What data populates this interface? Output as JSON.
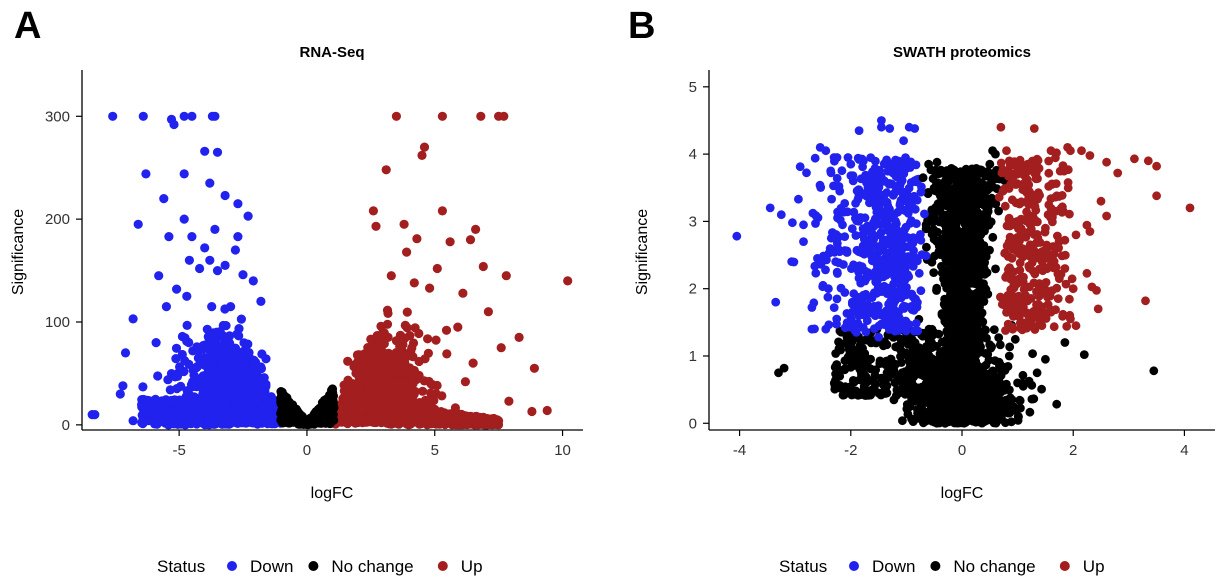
{
  "panels": [
    {
      "letter": "A",
      "chart_data": {
        "type": "scatter",
        "title": "RNA-Seq",
        "xlabel": "logFC",
        "ylabel": "Significance",
        "xlim": [
          -8.8,
          10.8
        ],
        "ylim": [
          -5,
          345
        ],
        "xticks": [
          -5,
          0,
          5,
          10
        ],
        "yticks": [
          0,
          100,
          200,
          300
        ],
        "grid": false,
        "series": [
          {
            "name": "Down",
            "color": "#2222ee",
            "points": [
              [
                -7.6,
                300
              ],
              [
                -6.4,
                300
              ],
              [
                -5.3,
                297
              ],
              [
                -5.2,
                292
              ],
              [
                -4.8,
                300
              ],
              [
                -4.5,
                300
              ],
              [
                -3.7,
                300
              ],
              [
                -3.6,
                300
              ],
              [
                -4.0,
                266
              ],
              [
                -3.5,
                265
              ],
              [
                -4.8,
                244
              ],
              [
                -6.3,
                244
              ],
              [
                -3.8,
                235
              ],
              [
                -5.6,
                220
              ],
              [
                -4.8,
                200
              ],
              [
                -3.2,
                223
              ],
              [
                -2.7,
                215
              ],
              [
                -2.3,
                203
              ],
              [
                -6.6,
                195
              ],
              [
                -5.4,
                183
              ],
              [
                -4.5,
                183
              ],
              [
                -2.7,
                183
              ],
              [
                -3.6,
                190
              ],
              [
                -4.0,
                172
              ],
              [
                -2.8,
                170
              ],
              [
                -5.8,
                145
              ],
              [
                -4.6,
                160
              ],
              [
                -4.2,
                152
              ],
              [
                -3.8,
                160
              ],
              [
                -3.5,
                150
              ],
              [
                -3.2,
                155
              ],
              [
                -2.5,
                146
              ],
              [
                -2.1,
                140
              ],
              [
                -5.1,
                132
              ],
              [
                -4.7,
                125
              ],
              [
                -1.8,
                120
              ],
              [
                -6.8,
                103
              ],
              [
                -5.5,
                115
              ],
              [
                -5.9,
                80
              ],
              [
                -7.1,
                70
              ],
              [
                -7.2,
                38
              ],
              [
                -7.3,
                30
              ],
              [
                -8.4,
                10
              ],
              [
                -8.3,
                10
              ],
              [
                -6.0,
                4
              ],
              [
                -6.4,
                4
              ],
              [
                -5.7,
                4
              ],
              [
                -6.8,
                4
              ]
            ]
          },
          {
            "name": "No change",
            "color": "#000000",
            "points": []
          },
          {
            "name": "Up",
            "color": "#a31e1e",
            "points": [
              [
                3.5,
                300
              ],
              [
                5.3,
                300
              ],
              [
                6.8,
                300
              ],
              [
                7.5,
                300
              ],
              [
                7.7,
                300
              ],
              [
                4.6,
                270
              ],
              [
                4.5,
                262
              ],
              [
                3.1,
                248
              ],
              [
                2.6,
                208
              ],
              [
                5.3,
                208
              ],
              [
                2.7,
                193
              ],
              [
                3.8,
                195
              ],
              [
                6.6,
                190
              ],
              [
                4.3,
                181
              ],
              [
                6.4,
                180
              ],
              [
                5.6,
                178
              ],
              [
                3.9,
                168
              ],
              [
                7.8,
                145
              ],
              [
                10.2,
                140
              ],
              [
                6.9,
                154
              ],
              [
                8.3,
                85
              ],
              [
                8.9,
                55
              ],
              [
                5.1,
                152
              ],
              [
                4.8,
                133
              ],
              [
                4.2,
                138
              ],
              [
                3.3,
                145
              ],
              [
                6.1,
                128
              ],
              [
                7.1,
                110
              ],
              [
                7.6,
                75
              ],
              [
                7.9,
                23
              ],
              [
                8.8,
                13
              ],
              [
                9.4,
                14
              ],
              [
                5.9,
                95
              ],
              [
                6.5,
                60
              ],
              [
                6.2,
                42
              ]
            ]
          }
        ]
      }
    },
    {
      "letter": "B",
      "chart_data": {
        "type": "scatter",
        "title": "SWATH proteomics",
        "xlabel": "logFC",
        "ylabel": "Significance",
        "xlim": [
          -4.55,
          4.55
        ],
        "ylim": [
          -0.1,
          5.25
        ],
        "xticks": [
          -4,
          -2,
          0,
          2,
          4
        ],
        "yticks": [
          0,
          1,
          2,
          3,
          4,
          5
        ],
        "grid": false,
        "series": [
          {
            "name": "Down",
            "color": "#2222ee",
            "points": [
              [
                -4.05,
                2.78
              ],
              [
                -3.45,
                3.2
              ],
              [
                -3.25,
                3.1
              ],
              [
                -3.05,
                2.98
              ],
              [
                -2.85,
                2.95
              ],
              [
                -2.6,
                3.05
              ],
              [
                -2.55,
                4.1
              ],
              [
                -2.45,
                4.05
              ],
              [
                -2.3,
                3.95
              ],
              [
                -2.0,
                3.85
              ],
              [
                -1.85,
                4.35
              ],
              [
                -1.45,
                4.5
              ],
              [
                -1.45,
                4.4
              ],
              [
                -1.3,
                4.38
              ],
              [
                -1.05,
                4.2
              ],
              [
                -0.95,
                4.4
              ],
              [
                -0.85,
                4.38
              ],
              [
                -3.35,
                1.8
              ],
              [
                -2.7,
                1.72
              ],
              [
                -2.5,
                2.05
              ],
              [
                -2.7,
                1.4
              ],
              [
                -2.45,
                1.4
              ],
              [
                -2.2,
                2.55
              ],
              [
                -2.1,
                1.42
              ],
              [
                -1.85,
                1.72
              ],
              [
                -1.5,
                1.28
              ],
              [
                -1.9,
                1.35
              ],
              [
                -2.15,
                2.95
              ],
              [
                -2.85,
                2.7
              ],
              [
                -2.6,
                2.45
              ],
              [
                -2.35,
                2.75
              ],
              [
                -2.2,
                3.45
              ],
              [
                -2.05,
                3.95
              ]
            ]
          },
          {
            "name": "No change",
            "color": "#000000",
            "points": [
              [
                -3.3,
                0.75
              ],
              [
                -3.2,
                0.82
              ],
              [
                -0.45,
                3.88
              ],
              [
                -0.6,
                3.85
              ],
              [
                -0.7,
                3.65
              ],
              [
                -0.55,
                1.35
              ],
              [
                -1.0,
                0.55
              ],
              [
                -1.5,
                0.45
              ],
              [
                -1.35,
                0.45
              ],
              [
                -2.2,
                0.7
              ],
              [
                -2.0,
                1.0
              ],
              [
                1.85,
                1.2
              ],
              [
                2.2,
                1.02
              ],
              [
                3.45,
                0.78
              ],
              [
                1.5,
                0.95
              ],
              [
                1.35,
                0.75
              ],
              [
                0.9,
                0.35
              ],
              [
                1.0,
                0.6
              ],
              [
                0.85,
                1.0
              ],
              [
                1.1,
                0.55
              ],
              [
                0.55,
                4.05
              ],
              [
                0.6,
                4.0
              ],
              [
                0.5,
                3.85
              ],
              [
                0.45,
                3.7
              ]
            ]
          },
          {
            "name": "Up",
            "color": "#a31e1e",
            "points": [
              [
                0.7,
                4.4
              ],
              [
                1.3,
                4.38
              ],
              [
                1.6,
                4.05
              ],
              [
                1.7,
                4.02
              ],
              [
                1.9,
                4.1
              ],
              [
                1.95,
                4.05
              ],
              [
                2.15,
                4.05
              ],
              [
                2.3,
                3.98
              ],
              [
                2.6,
                3.88
              ],
              [
                2.8,
                3.72
              ],
              [
                3.1,
                3.93
              ],
              [
                3.35,
                3.9
              ],
              [
                3.5,
                3.82
              ],
              [
                3.5,
                3.38
              ],
              [
                4.1,
                3.2
              ],
              [
                2.5,
                3.3
              ],
              [
                2.6,
                3.08
              ],
              [
                2.3,
                2.85
              ],
              [
                2.05,
                2.8
              ],
              [
                3.3,
                1.82
              ],
              [
                2.45,
                1.7
              ],
              [
                1.95,
                1.55
              ],
              [
                2.05,
                1.45
              ],
              [
                1.6,
                1.65
              ],
              [
                1.4,
                1.55
              ],
              [
                1.2,
                1.5
              ],
              [
                1.85,
                2.3
              ],
              [
                1.75,
                2.15
              ],
              [
                2.0,
                2.0
              ],
              [
                1.1,
                2.1
              ],
              [
                1.5,
                2.9
              ],
              [
                1.2,
                3.25
              ],
              [
                1.0,
                3.75
              ],
              [
                0.8,
                4.05
              ]
            ]
          }
        ]
      }
    }
  ],
  "legend": {
    "title": "Status",
    "items": [
      {
        "label": "Down",
        "color": "#2222ee"
      },
      {
        "label": "No change",
        "color": "#000000"
      },
      {
        "label": "Up",
        "color": "#a31e1e"
      }
    ]
  }
}
